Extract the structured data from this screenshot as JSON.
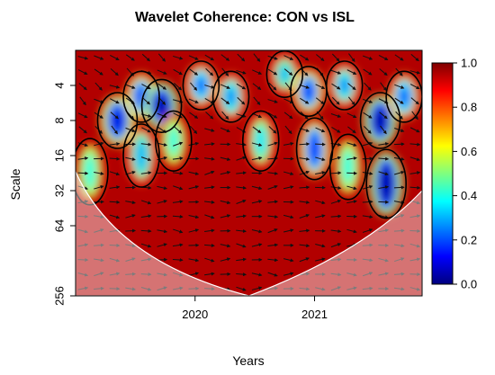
{
  "chart_data": {
    "type": "heatmap",
    "title": "Wavelet Coherence: CON vs ISL",
    "xlabel": "Years",
    "ylabel": "Scale",
    "x_ticks": [
      "2020",
      "2021"
    ],
    "x_tick_values": [
      2020.0,
      2021.0
    ],
    "xlim": [
      2019.0,
      2021.9
    ],
    "y_scale": "log2",
    "y_ticks": [
      "4",
      "8",
      "16",
      "32",
      "64",
      "256"
    ],
    "y_tick_values": [
      4,
      8,
      16,
      32,
      64,
      256
    ],
    "ylim": [
      2,
      256
    ],
    "colorbar": {
      "ticks": [
        "0.0",
        "0.2",
        "0.4",
        "0.6",
        "0.8",
        "1.0"
      ],
      "tick_values": [
        0.0,
        0.2,
        0.4,
        0.6,
        0.8,
        1.0
      ],
      "range": [
        0.0,
        1.0
      ],
      "colors": [
        "#00007f",
        "#0000ff",
        "#007fff",
        "#00ffff",
        "#7fff7f",
        "#ffff00",
        "#ff7f00",
        "#ff0000",
        "#7f0000"
      ]
    },
    "cone_of_influence": true,
    "phase_arrows": true,
    "low_coherence_regions": [
      {
        "x": 2019.12,
        "scale": 22,
        "value": 0.55
      },
      {
        "x": 2019.35,
        "scale": 8,
        "value": 0.25
      },
      {
        "x": 2019.55,
        "scale": 5,
        "value": 0.3
      },
      {
        "x": 2019.55,
        "scale": 16,
        "value": 0.45
      },
      {
        "x": 2019.72,
        "scale": 6,
        "value": 0.2
      },
      {
        "x": 2019.82,
        "scale": 12,
        "value": 0.55
      },
      {
        "x": 2020.05,
        "scale": 4,
        "value": 0.35
      },
      {
        "x": 2020.3,
        "scale": 5,
        "value": 0.4
      },
      {
        "x": 2020.55,
        "scale": 12,
        "value": 0.5
      },
      {
        "x": 2020.75,
        "scale": 3.2,
        "value": 0.45
      },
      {
        "x": 2020.95,
        "scale": 4.5,
        "value": 0.3
      },
      {
        "x": 2021.0,
        "scale": 14,
        "value": 0.3
      },
      {
        "x": 2021.25,
        "scale": 4,
        "value": 0.4
      },
      {
        "x": 2021.28,
        "scale": 20,
        "value": 0.55
      },
      {
        "x": 2021.55,
        "scale": 8,
        "value": 0.2
      },
      {
        "x": 2021.6,
        "scale": 28,
        "value": 0.2
      },
      {
        "x": 2021.75,
        "scale": 5,
        "value": 0.35
      }
    ],
    "high_coherence_background": 0.95
  }
}
